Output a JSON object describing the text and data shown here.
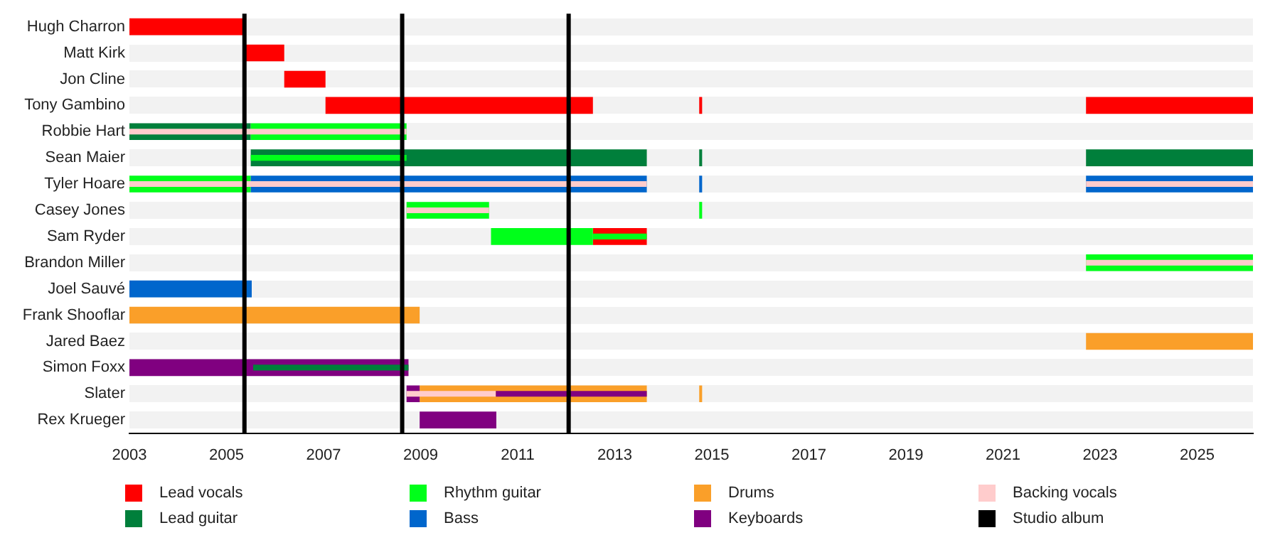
{
  "chart_data": {
    "type": "bar",
    "orientation": "horizontal",
    "categories": [
      "Hugh Charron",
      "Matt Kirk",
      "Jon Cline",
      "Tony Gambino",
      "Robbie Hart",
      "Sean Maier",
      "Tyler Hoare",
      "Casey Jones",
      "Sam Ryder",
      "Brandon Miller",
      "Joel Sauvé",
      "Frank Shooflar",
      "Jared Baez",
      "Simon Foxx",
      "Slater",
      "Rex Krueger"
    ],
    "series": [
      {
        "name": "Lead vocals",
        "color": "#ff0000",
        "base": [
          2003,
          2005.37,
          2006.19,
          2007.04,
          null,
          null,
          null,
          null,
          2012.55,
          null,
          null,
          null,
          null,
          null,
          null,
          null
        ],
        "values": [
          2.37,
          0.82,
          0.85,
          5.51,
          null,
          null,
          null,
          null,
          1.11,
          null,
          null,
          null,
          null,
          null,
          null,
          null
        ]
      },
      {
        "name": "Lead guitar",
        "color": "#007f3b",
        "base": [
          null,
          null,
          null,
          null,
          2003,
          2005.5,
          null,
          null,
          null,
          null,
          null,
          null,
          null,
          null,
          null,
          null
        ],
        "values": [
          null,
          null,
          null,
          null,
          2.5,
          8.16,
          null,
          null,
          null,
          null,
          null,
          null,
          null,
          null,
          null,
          null
        ]
      },
      {
        "name": "Rhythm guitar",
        "color": "#00ff1a",
        "base": [
          null,
          null,
          null,
          null,
          2005.5,
          null,
          2003,
          2008.71,
          2010.45,
          2022.71,
          null,
          null,
          null,
          null,
          null,
          null
        ],
        "values": [
          null,
          null,
          null,
          null,
          3.21,
          null,
          2.5,
          1.7,
          2.1,
          3.44,
          null,
          null,
          null,
          null,
          null,
          null
        ]
      },
      {
        "name": "Bass",
        "color": "#0066cc",
        "base": [
          null,
          null,
          null,
          null,
          null,
          null,
          2005.5,
          null,
          null,
          null,
          2003,
          null,
          null,
          null,
          null,
          null
        ],
        "values": [
          null,
          null,
          null,
          null,
          null,
          null,
          8.16,
          null,
          null,
          null,
          2.52,
          null,
          null,
          null,
          null,
          null
        ]
      },
      {
        "name": "Drums",
        "color": "#fa9f29",
        "base": [
          null,
          null,
          null,
          null,
          null,
          null,
          null,
          null,
          null,
          null,
          null,
          2003,
          2022.71,
          null,
          2008.98,
          null
        ],
        "values": [
          null,
          null,
          null,
          null,
          null,
          null,
          null,
          null,
          null,
          null,
          null,
          5.98,
          3.44,
          null,
          4.68,
          null
        ]
      },
      {
        "name": "Keyboards",
        "color": "#800080",
        "base": [
          null,
          null,
          null,
          null,
          null,
          null,
          null,
          null,
          null,
          null,
          null,
          null,
          null,
          2003,
          2008.71,
          2008.98
        ],
        "values": [
          null,
          null,
          null,
          null,
          null,
          null,
          null,
          null,
          null,
          null,
          null,
          null,
          null,
          5.75,
          0.27,
          1.58
        ]
      },
      {
        "color": "#ff0000",
        "base": [
          null,
          null,
          null,
          2022.71,
          null,
          null,
          null,
          null,
          null,
          null,
          null,
          null,
          null,
          null,
          null,
          null
        ],
        "values": [
          null,
          null,
          null,
          3.44,
          null,
          null,
          null,
          null,
          null,
          null,
          null,
          null,
          null,
          null,
          null,
          null
        ]
      },
      {
        "color": "#ff0000",
        "base": [
          null,
          null,
          null,
          2014.74,
          null,
          null,
          null,
          null,
          null,
          null,
          null,
          null,
          null,
          null,
          null,
          null
        ],
        "values": [
          null,
          null,
          null,
          0.06,
          null,
          null,
          null,
          null,
          null,
          null,
          null,
          null,
          null,
          null,
          null,
          null
        ]
      },
      {
        "color": "#007f3b",
        "base": [
          null,
          null,
          null,
          null,
          null,
          2022.71,
          null,
          null,
          null,
          null,
          null,
          null,
          null,
          null,
          null,
          null
        ],
        "values": [
          null,
          null,
          null,
          null,
          null,
          3.44,
          null,
          null,
          null,
          null,
          null,
          null,
          null,
          null,
          null,
          null
        ]
      },
      {
        "color": "#007f3b",
        "base": [
          null,
          null,
          null,
          null,
          null,
          2014.74,
          null,
          null,
          null,
          null,
          null,
          null,
          null,
          null,
          null,
          null
        ],
        "values": [
          null,
          null,
          null,
          null,
          null,
          0.06,
          null,
          null,
          null,
          null,
          null,
          null,
          null,
          null,
          null,
          null
        ]
      },
      {
        "color": "#0066cc",
        "base": [
          null,
          null,
          null,
          null,
          null,
          null,
          2022.71,
          null,
          null,
          null,
          null,
          null,
          null,
          null,
          null,
          null
        ],
        "values": [
          null,
          null,
          null,
          null,
          null,
          null,
          3.44,
          null,
          null,
          null,
          null,
          null,
          null,
          null,
          null,
          null
        ]
      },
      {
        "color": "#0066cc",
        "base": [
          null,
          null,
          null,
          null,
          null,
          null,
          2014.74,
          null,
          null,
          null,
          null,
          null,
          null,
          null,
          null,
          null
        ],
        "values": [
          null,
          null,
          null,
          null,
          null,
          null,
          0.06,
          null,
          null,
          null,
          null,
          null,
          null,
          null,
          null,
          null
        ]
      },
      {
        "color": "#00ff1a",
        "base": [
          null,
          null,
          null,
          null,
          null,
          null,
          null,
          2014.74,
          null,
          null,
          null,
          null,
          null,
          null,
          null,
          null
        ],
        "values": [
          null,
          null,
          null,
          null,
          null,
          null,
          null,
          0.06,
          null,
          null,
          null,
          null,
          null,
          null,
          null,
          null
        ]
      },
      {
        "color": "#fa9f29",
        "base": [
          null,
          null,
          null,
          null,
          null,
          null,
          null,
          null,
          null,
          null,
          null,
          null,
          null,
          null,
          2014.74,
          null
        ],
        "values": [
          null,
          null,
          null,
          null,
          null,
          null,
          null,
          null,
          null,
          null,
          null,
          null,
          null,
          null,
          0.06,
          null
        ]
      },
      {
        "name": "Backing vocals",
        "color": "#ffcccc",
        "base": [
          null,
          null,
          null,
          null,
          2003,
          null,
          2003,
          2008.71,
          null,
          2022.71,
          null,
          null,
          null,
          null,
          2008.71,
          null
        ],
        "values": [
          null,
          null,
          null,
          null,
          5.71,
          null,
          10.66,
          1.7,
          null,
          3.44,
          null,
          null,
          null,
          null,
          1.84,
          null
        ]
      },
      {
        "color": "#ffcccc",
        "base": [
          null,
          null,
          null,
          null,
          null,
          null,
          2022.71,
          null,
          null,
          null,
          null,
          null,
          null,
          null,
          null,
          null
        ],
        "values": [
          null,
          null,
          null,
          null,
          null,
          null,
          3.44,
          null,
          null,
          null,
          null,
          null,
          null,
          null,
          null,
          null
        ]
      },
      {
        "color": "#00ff1a",
        "base": [
          null,
          null,
          null,
          null,
          null,
          2005.5,
          null,
          null,
          2012.55,
          null,
          null,
          null,
          null,
          null,
          null,
          null
        ],
        "values": [
          null,
          null,
          null,
          null,
          null,
          3.21,
          null,
          null,
          1.11,
          null,
          null,
          null,
          null,
          null,
          null,
          null
        ]
      },
      {
        "color": "#007f3b",
        "base": [
          null,
          null,
          null,
          null,
          null,
          null,
          null,
          null,
          null,
          null,
          null,
          null,
          null,
          2005.55,
          null,
          null
        ],
        "values": [
          null,
          null,
          null,
          null,
          null,
          null,
          null,
          null,
          null,
          null,
          null,
          null,
          null,
          3.2,
          null,
          null
        ]
      },
      {
        "color": "#800080",
        "base": [
          null,
          null,
          null,
          null,
          null,
          null,
          null,
          null,
          null,
          null,
          null,
          null,
          null,
          null,
          2010.55,
          null
        ],
        "values": [
          null,
          null,
          null,
          null,
          null,
          null,
          null,
          null,
          null,
          null,
          null,
          null,
          null,
          null,
          3.11,
          null
        ]
      }
    ],
    "xlim": [
      2003,
      2026.15
    ],
    "xticks": [
      2003,
      2005,
      2007,
      2009,
      2011,
      2013,
      2015,
      2017,
      2019,
      2021,
      2023,
      2025
    ],
    "ref_lines": [
      {
        "axis": "x",
        "value": 2005.37,
        "label": "Studio album",
        "color": "#000000"
      },
      {
        "axis": "x",
        "value": 2008.62,
        "color": "#000000"
      },
      {
        "axis": "x",
        "value": 2012.05,
        "color": "#000000"
      }
    ],
    "grid": "y",
    "legend": "bottom"
  }
}
